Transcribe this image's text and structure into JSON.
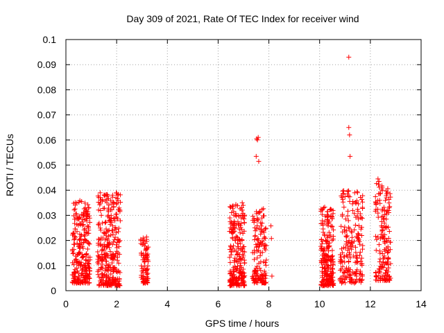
{
  "chart_data": {
    "type": "scatter",
    "title": "Day 309 of 2021, Rate Of TEC Index for receiver wind",
    "xlabel": "GPS time / hours",
    "ylabel": "ROTI / TECUs",
    "xlim": [
      0,
      14
    ],
    "ylim": [
      0,
      0.1
    ],
    "grid": true,
    "x_ticks": [
      0,
      2,
      4,
      6,
      8,
      10,
      12,
      14
    ],
    "x_tick_labels": [
      "0",
      "2",
      "4",
      "6",
      "8",
      "10",
      "12",
      "14"
    ],
    "y_ticks": [
      0,
      0.01,
      0.02,
      0.03,
      0.04,
      0.05,
      0.06,
      0.07,
      0.08,
      0.09,
      0.1
    ],
    "y_tick_labels": [
      "0",
      "0.01",
      "0.02",
      "0.03",
      "0.04",
      "0.05",
      "0.06",
      "0.07",
      "0.08",
      "0.09",
      "0.1"
    ],
    "marker": "+",
    "color": "#ff0000",
    "series": [
      {
        "name": "ROTI",
        "clusters": [
          {
            "x_range": [
              0.25,
              0.95
            ],
            "y_range": [
              0.003,
              0.036
            ],
            "count": 260
          },
          {
            "x_range": [
              1.25,
              2.15
            ],
            "y_range": [
              0.002,
              0.039
            ],
            "count": 320
          },
          {
            "x_range": [
              2.95,
              3.25
            ],
            "y_range": [
              0.003,
              0.022
            ],
            "count": 90
          },
          {
            "x_range": [
              6.45,
              7.05
            ],
            "y_range": [
              0.002,
              0.035
            ],
            "count": 230
          },
          {
            "x_range": [
              7.35,
              7.9
            ],
            "y_range": [
              0.003,
              0.033
            ],
            "count": 150
          },
          {
            "x_range": [
              10.05,
              10.55
            ],
            "y_range": [
              0.002,
              0.033
            ],
            "count": 220
          },
          {
            "x_range": [
              10.8,
              11.7
            ],
            "y_range": [
              0.003,
              0.04
            ],
            "count": 200
          },
          {
            "x_range": [
              12.2,
              12.8
            ],
            "y_range": [
              0.004,
              0.044
            ],
            "count": 170
          }
        ],
        "points": [
          [
            11.15,
            0.093
          ],
          [
            11.15,
            0.065
          ],
          [
            11.18,
            0.062
          ],
          [
            11.2,
            0.0535
          ],
          [
            7.52,
            0.0605
          ],
          [
            7.55,
            0.06
          ],
          [
            7.58,
            0.061
          ],
          [
            7.5,
            0.0535
          ],
          [
            7.6,
            0.0515
          ],
          [
            8.08,
            0.0258
          ],
          [
            8.1,
            0.0208
          ],
          [
            8.12,
            0.0058
          ],
          [
            12.3,
            0.0445
          ],
          [
            12.35,
            0.0412
          ],
          [
            12.45,
            0.0405
          ],
          [
            10.2,
            0.0333
          ],
          [
            10.95,
            0.0398
          ],
          [
            0.62,
            0.0355
          ],
          [
            1.35,
            0.039
          ],
          [
            6.95,
            0.035
          ]
        ]
      }
    ]
  }
}
